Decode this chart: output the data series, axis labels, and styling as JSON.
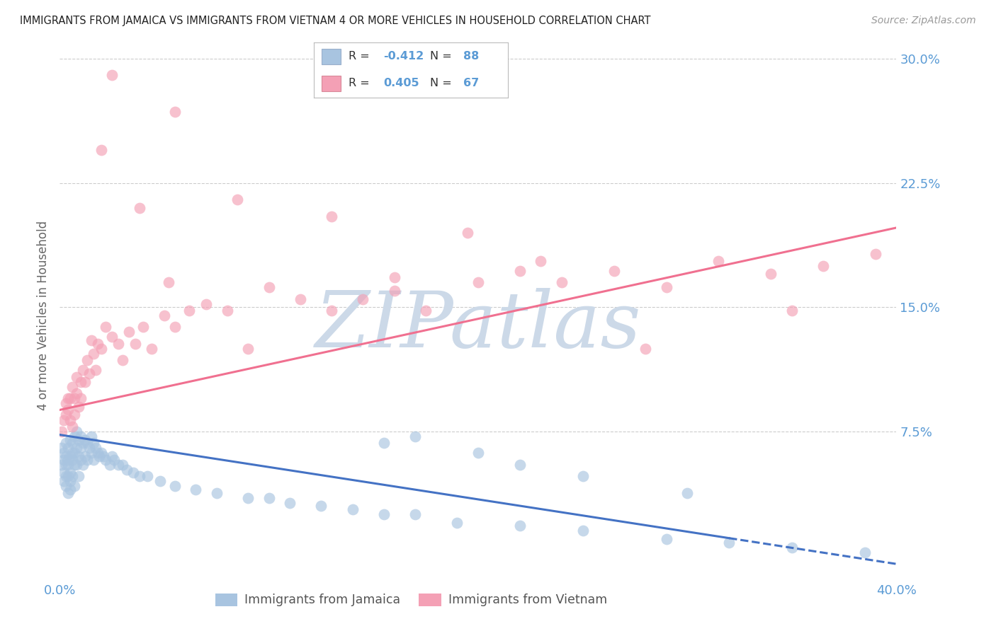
{
  "title": "IMMIGRANTS FROM JAMAICA VS IMMIGRANTS FROM VIETNAM 4 OR MORE VEHICLES IN HOUSEHOLD CORRELATION CHART",
  "source": "Source: ZipAtlas.com",
  "ylabel": "4 or more Vehicles in Household",
  "xmin": 0.0,
  "xmax": 0.4,
  "ymin": -0.015,
  "ymax": 0.305,
  "yticks": [
    0.075,
    0.15,
    0.225,
    0.3
  ],
  "ytick_labels": [
    "7.5%",
    "15.0%",
    "22.5%",
    "30.0%"
  ],
  "jamaica_color": "#a8c4e0",
  "vietnam_color": "#f4a0b5",
  "jamaica_line_color": "#4472c4",
  "vietnam_line_color": "#f07090",
  "jamaica_R": -0.412,
  "jamaica_N": 88,
  "vietnam_R": 0.405,
  "vietnam_N": 67,
  "legend_jamaica_label": "Immigrants from Jamaica",
  "legend_vietnam_label": "Immigrants from Vietnam",
  "title_color": "#222222",
  "source_color": "#999999",
  "tick_color": "#5b9bd5",
  "watermark": "ZIPatlas",
  "watermark_color": "#ccd9e8",
  "jamaica_line_x0": 0.0,
  "jamaica_line_x1": 0.4,
  "jamaica_line_y0": 0.073,
  "jamaica_line_y1": -0.005,
  "jamaica_line_solid_end": 0.32,
  "vietnam_line_x0": 0.0,
  "vietnam_line_x1": 0.4,
  "vietnam_line_y0": 0.088,
  "vietnam_line_y1": 0.198,
  "grid_color": "#cccccc",
  "background_color": "#ffffff",
  "scatter_size": 130,
  "scatter_alpha": 0.65,
  "jamaica_scatter_x": [
    0.001,
    0.001,
    0.002,
    0.002,
    0.002,
    0.002,
    0.003,
    0.003,
    0.003,
    0.003,
    0.003,
    0.004,
    0.004,
    0.004,
    0.004,
    0.004,
    0.005,
    0.005,
    0.005,
    0.005,
    0.005,
    0.006,
    0.006,
    0.006,
    0.006,
    0.007,
    0.007,
    0.007,
    0.007,
    0.008,
    0.008,
    0.008,
    0.009,
    0.009,
    0.009,
    0.01,
    0.01,
    0.01,
    0.011,
    0.011,
    0.012,
    0.012,
    0.013,
    0.013,
    0.014,
    0.015,
    0.015,
    0.016,
    0.016,
    0.017,
    0.018,
    0.019,
    0.02,
    0.021,
    0.022,
    0.024,
    0.025,
    0.026,
    0.028,
    0.03,
    0.032,
    0.035,
    0.038,
    0.042,
    0.048,
    0.055,
    0.065,
    0.075,
    0.09,
    0.1,
    0.11,
    0.125,
    0.14,
    0.155,
    0.17,
    0.19,
    0.22,
    0.25,
    0.29,
    0.32,
    0.35,
    0.385,
    0.155,
    0.17,
    0.2,
    0.22,
    0.25,
    0.3
  ],
  "jamaica_scatter_y": [
    0.055,
    0.065,
    0.058,
    0.062,
    0.045,
    0.05,
    0.068,
    0.055,
    0.048,
    0.06,
    0.042,
    0.065,
    0.055,
    0.048,
    0.058,
    0.038,
    0.07,
    0.06,
    0.05,
    0.045,
    0.04,
    0.068,
    0.058,
    0.062,
    0.048,
    0.072,
    0.062,
    0.055,
    0.042,
    0.075,
    0.065,
    0.055,
    0.07,
    0.06,
    0.048,
    0.072,
    0.065,
    0.058,
    0.068,
    0.055,
    0.07,
    0.06,
    0.068,
    0.058,
    0.065,
    0.072,
    0.062,
    0.068,
    0.058,
    0.065,
    0.062,
    0.06,
    0.062,
    0.06,
    0.058,
    0.055,
    0.06,
    0.058,
    0.055,
    0.055,
    0.052,
    0.05,
    0.048,
    0.048,
    0.045,
    0.042,
    0.04,
    0.038,
    0.035,
    0.035,
    0.032,
    0.03,
    0.028,
    0.025,
    0.025,
    0.02,
    0.018,
    0.015,
    0.01,
    0.008,
    0.005,
    0.002,
    0.068,
    0.072,
    0.062,
    0.055,
    0.048,
    0.038
  ],
  "vietnam_scatter_x": [
    0.001,
    0.002,
    0.003,
    0.003,
    0.004,
    0.004,
    0.005,
    0.005,
    0.006,
    0.006,
    0.007,
    0.007,
    0.008,
    0.008,
    0.009,
    0.01,
    0.01,
    0.011,
    0.012,
    0.013,
    0.014,
    0.015,
    0.016,
    0.017,
    0.018,
    0.02,
    0.022,
    0.025,
    0.028,
    0.03,
    0.033,
    0.036,
    0.04,
    0.044,
    0.05,
    0.055,
    0.062,
    0.07,
    0.08,
    0.09,
    0.1,
    0.115,
    0.13,
    0.145,
    0.16,
    0.175,
    0.2,
    0.22,
    0.24,
    0.265,
    0.29,
    0.315,
    0.34,
    0.365,
    0.39,
    0.055,
    0.085,
    0.13,
    0.16,
    0.195,
    0.23,
    0.28,
    0.35,
    0.02,
    0.025,
    0.038,
    0.052
  ],
  "vietnam_scatter_y": [
    0.075,
    0.082,
    0.085,
    0.092,
    0.088,
    0.095,
    0.082,
    0.095,
    0.078,
    0.102,
    0.085,
    0.095,
    0.098,
    0.108,
    0.09,
    0.095,
    0.105,
    0.112,
    0.105,
    0.118,
    0.11,
    0.13,
    0.122,
    0.112,
    0.128,
    0.125,
    0.138,
    0.132,
    0.128,
    0.118,
    0.135,
    0.128,
    0.138,
    0.125,
    0.145,
    0.138,
    0.148,
    0.152,
    0.148,
    0.125,
    0.162,
    0.155,
    0.148,
    0.155,
    0.16,
    0.148,
    0.165,
    0.172,
    0.165,
    0.172,
    0.162,
    0.178,
    0.17,
    0.175,
    0.182,
    0.268,
    0.215,
    0.205,
    0.168,
    0.195,
    0.178,
    0.125,
    0.148,
    0.245,
    0.29,
    0.21,
    0.165
  ]
}
